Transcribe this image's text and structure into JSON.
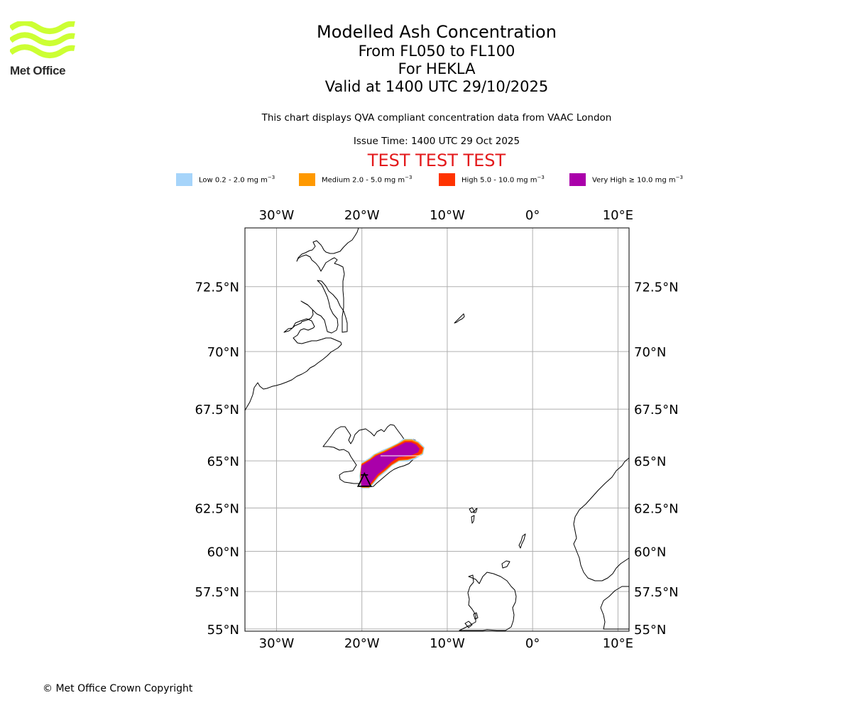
{
  "branding": {
    "logo_text": "Met Office",
    "logo_color": "#ccff33"
  },
  "header": {
    "title": "Modelled Ash Concentration",
    "levels": "From FL050 to FL100",
    "volcano_line": "For HEKLA",
    "valid_line": "Valid at 1400 UTC 29/10/2025",
    "description": "This chart displays QVA compliant concentration data from VAAC London",
    "issue_time": "Issue Time: 1400 UTC 29 Oct 2025",
    "test_banner": "TEST TEST TEST",
    "test_banner_color": "#e31a1c"
  },
  "legend": [
    {
      "range": "Low 0.2 - 2.0 mg m",
      "unit_exp": "−3",
      "color": "#a6d4fa"
    },
    {
      "range": "Medium 2.0 - 5.0 mg m",
      "unit_exp": "−3",
      "color": "#ff9900"
    },
    {
      "range": "High 5.0 - 10.0 mg m",
      "unit_exp": "−3",
      "color": "#ff3300"
    },
    {
      "range": "Very High ≥ 10.0 mg m",
      "unit_exp": "−3",
      "color": "#aa00aa"
    }
  ],
  "map": {
    "lon_range": [
      -33.7,
      11.3
    ],
    "lat_range": [
      54.85,
      74.5
    ],
    "lon_ticks": [
      {
        "value": -30,
        "label": "30°W"
      },
      {
        "value": -20,
        "label": "20°W"
      },
      {
        "value": -10,
        "label": "10°W"
      },
      {
        "value": 0,
        "label": "0°"
      },
      {
        "value": 10,
        "label": "10°E"
      }
    ],
    "lat_ticks": [
      {
        "value": 72.5,
        "label": "72.5°N"
      },
      {
        "value": 70,
        "label": "70°N"
      },
      {
        "value": 67.5,
        "label": "67.5°N"
      },
      {
        "value": 65,
        "label": "65°N"
      },
      {
        "value": 62.5,
        "label": "62.5°N"
      },
      {
        "value": 60,
        "label": "60°N"
      },
      {
        "value": 57.5,
        "label": "57.5°N"
      },
      {
        "value": 55,
        "label": "55°N"
      }
    ],
    "volcano": {
      "name": "HEKLA",
      "lon": -19.7,
      "lat": 63.98
    }
  },
  "footer": {
    "copyright": "© Met Office Crown Copyright"
  }
}
